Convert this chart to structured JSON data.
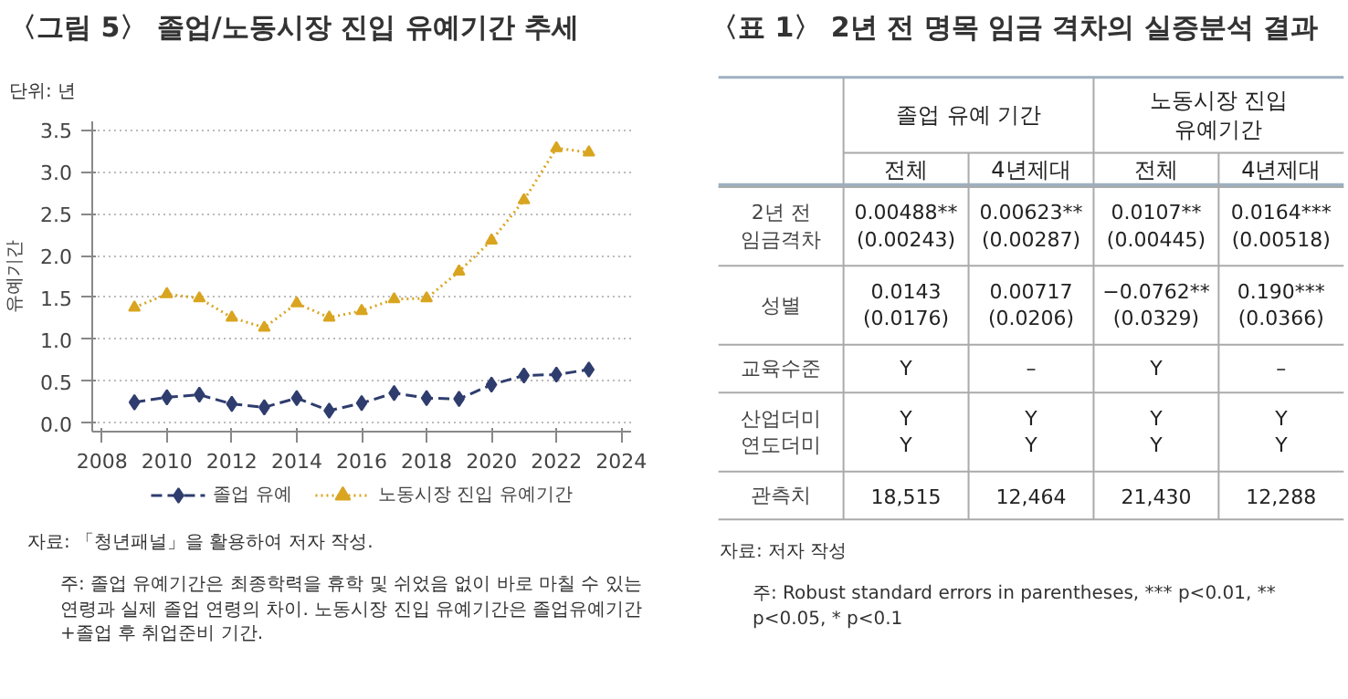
{
  "chart_data": [
    {
      "type": "line",
      "title": "〈그림 5〉 졸업/노동시장 진입 유예기간 추세",
      "ylabel": "유예기간",
      "annotations": [
        "단위: 년",
        "자료: 「청년패널」을 활용하여 저자 작성.",
        "주: 졸업 유예기간은 최종학력을 휴학 및 쉬었음 없이 바로 마칠 수 있는 연령과 실제 졸업 연령의 차이. 노동시장 진입 유예기간은 졸업유예기간+졸업 후 취업준비 기간."
      ],
      "x": [
        2009,
        2010,
        2011,
        2012,
        2013,
        2014,
        2015,
        2016,
        2017,
        2018,
        2019,
        2020,
        2021,
        2022,
        2023
      ],
      "series": [
        {
          "name": "졸업 유예",
          "color": "#2f3d6e",
          "marker": "diamond",
          "line_style": "dashed",
          "values": [
            0.25,
            0.31,
            0.34,
            0.23,
            0.19,
            0.3,
            0.15,
            0.24,
            0.36,
            0.3,
            0.29,
            0.46,
            0.57,
            0.58,
            0.64
          ]
        },
        {
          "name": "노동시장 진입 유예기간",
          "color": "#d9a520",
          "marker": "triangle",
          "line_style": "dotted",
          "values": [
            1.38,
            1.54,
            1.49,
            1.26,
            1.14,
            1.43,
            1.26,
            1.34,
            1.48,
            1.49,
            1.81,
            2.18,
            2.66,
            3.28,
            3.23
          ]
        }
      ],
      "xlim": [
        2007.7,
        2024.3
      ],
      "ylim": [
        -0.1,
        3.6
      ],
      "xticks": [
        2008,
        2010,
        2012,
        2014,
        2016,
        2018,
        2020,
        2022,
        2024
      ],
      "yticks": [
        {
          "value": 0,
          "label": "0.0"
        },
        {
          "value": 0.5,
          "label": "0.5"
        },
        {
          "value": 1,
          "label": "1.0"
        },
        {
          "value": 1.5,
          "label": "1.5"
        },
        {
          "value": 2,
          "label": "2.0"
        },
        {
          "value": 2.5,
          "label": "2.5"
        },
        {
          "value": 3,
          "label": "3.0"
        },
        {
          "value": 3.5,
          "label": "3.5"
        }
      ],
      "grid": "y",
      "legend": "bottom"
    },
    {
      "type": "other",
      "title": "〈표 1〉 2년 전 명목 임금 격차의 실증분석 결과",
      "annotations": [
        "졸업 유예 기간",
        "노동시장 진입\n유예기간",
        "자료: 저자 작성",
        "주: Robust standard errors in parentheses, *** p<0.01, ** p<0.05, * p<0.1"
      ],
      "categories": [
        "전체",
        "4년제대",
        "전체",
        "4년제대"
      ],
      "y_categories": [
        "2년 전\n임금격차",
        "성별",
        "교육수준",
        "산업더미\n연도더미",
        "관측치"
      ],
      "cell_labels": [
        [
          "0.00488**\n(0.00243)",
          "0.00623**\n(0.00287)",
          "0.0107**\n(0.00445)",
          "0.0164***\n(0.00518)"
        ],
        [
          "0.0143\n(0.0176)",
          "0.00717\n(0.0206)",
          "−0.0762**\n(0.0329)",
          "0.190***\n(0.0366)"
        ],
        [
          "Y",
          "–",
          "Y",
          "–"
        ],
        [
          "Y\nY",
          "Y\nY",
          "Y\nY",
          "Y\nY"
        ],
        [
          "18,515",
          "12,464",
          "21,430",
          "12,288"
        ]
      ]
    }
  ]
}
